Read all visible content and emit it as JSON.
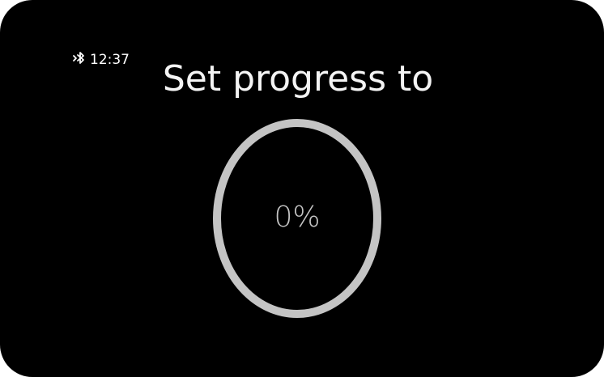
{
  "status_bar": {
    "icon": "bluetooth-icon",
    "time": "12:37"
  },
  "screen": {
    "title": "Set progress to",
    "progress": {
      "label": "0%",
      "value": 0
    }
  },
  "colors": {
    "background": "#000000",
    "text": "#f4f4f4",
    "ring": "#c4c4c4"
  }
}
